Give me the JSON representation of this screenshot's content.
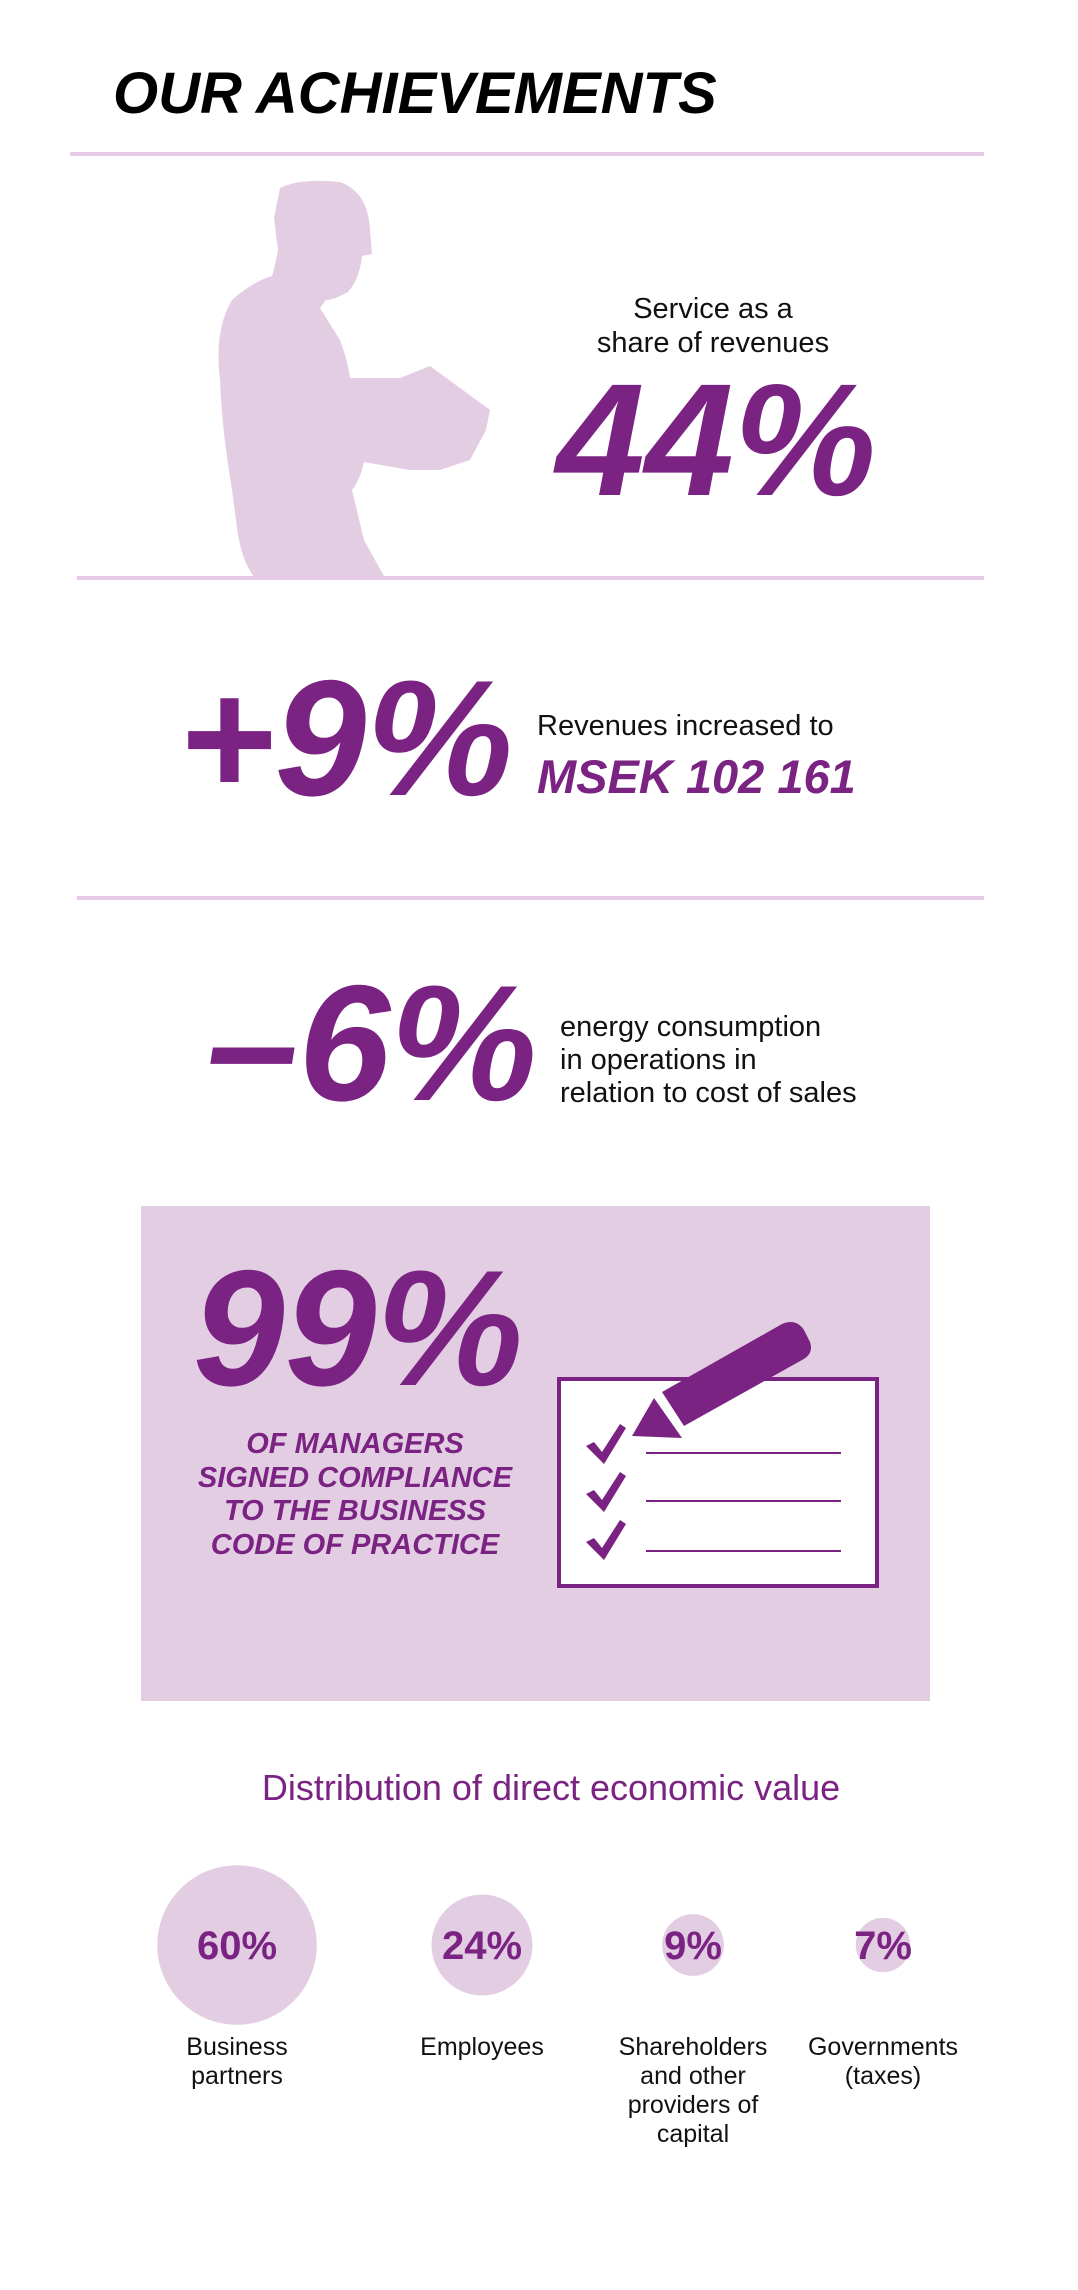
{
  "header": {
    "title": "OUR ACHIEVEMENTS"
  },
  "service": {
    "caption": [
      "Service as a",
      "share of revenues"
    ],
    "figure": "44%"
  },
  "revenue": {
    "figure": "+9%",
    "caption": "Revenues increased to",
    "amount": "MSEK 102 161"
  },
  "energy": {
    "figure": "–6%",
    "caption": [
      "energy consumption",
      "in operations in",
      "relation to cost of sales"
    ]
  },
  "compliance": {
    "figure": "99%",
    "caption": [
      "OF MANAGERS",
      "SIGNED COMPLIANCE",
      "TO THE BUSINESS",
      "CODE OF PRACTICE"
    ]
  },
  "distribution": {
    "title": "Distribution of direct economic value",
    "items": [
      {
        "value": 60,
        "label": "60%",
        "name": [
          "Business",
          "partners"
        ]
      },
      {
        "value": 24,
        "label": "24%",
        "name": [
          "Employees"
        ]
      },
      {
        "value": 9,
        "label": "9%",
        "name": [
          "Shareholders",
          "and other",
          "providers of",
          "capital"
        ]
      },
      {
        "value": 7,
        "label": "7%",
        "name": [
          "Governments",
          "(taxes)"
        ]
      }
    ]
  }
}
